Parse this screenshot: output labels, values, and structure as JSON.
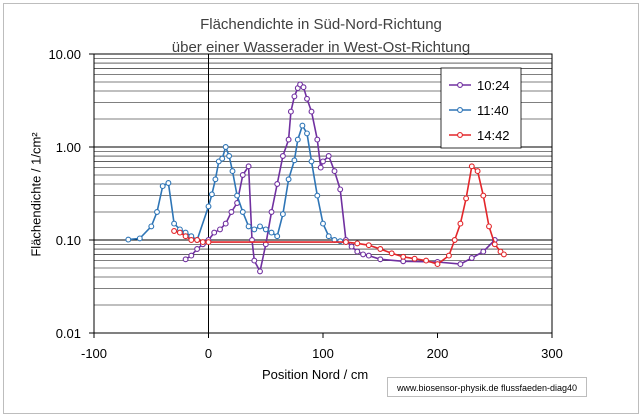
{
  "chart_data": {
    "type": "line",
    "title_line1": "Flächendichte in Süd-Nord-Richtung",
    "title_line2": "über einer Wasserader in West-Ost-Richtung",
    "xlabel": "Position Nord / cm",
    "ylabel": "Flächendichte / 1/cm²",
    "xlim": [
      -100,
      300
    ],
    "ylim": [
      0.01,
      10
    ],
    "yscale": "log",
    "x_ticks": [
      "-100",
      "0",
      "100",
      "200",
      "300"
    ],
    "y_ticks": [
      "0.01",
      "0.10",
      "1.00",
      "10.00"
    ],
    "grid": true,
    "legend_position": "top-right",
    "footer_note": "www.biosensor-physik.de  flussfaeden-diag40",
    "series": [
      {
        "name": "10:24",
        "color": "#7030a0",
        "points": [
          [
            -20,
            0.062
          ],
          [
            -15,
            0.068
          ],
          [
            -10,
            0.08
          ],
          [
            -5,
            0.09
          ],
          [
            0,
            0.1
          ],
          [
            5,
            0.12
          ],
          [
            10,
            0.13
          ],
          [
            15,
            0.15
          ],
          [
            20,
            0.2
          ],
          [
            25,
            0.25
          ],
          [
            30,
            0.5
          ],
          [
            35,
            0.62
          ],
          [
            38,
            0.1
          ],
          [
            40,
            0.06
          ],
          [
            45,
            0.046
          ],
          [
            50,
            0.09
          ],
          [
            55,
            0.2
          ],
          [
            60,
            0.4
          ],
          [
            65,
            0.8
          ],
          [
            70,
            1.2
          ],
          [
            72,
            2.4
          ],
          [
            75,
            3.5
          ],
          [
            78,
            4.3
          ],
          [
            80,
            4.7
          ],
          [
            83,
            4.4
          ],
          [
            86,
            3.3
          ],
          [
            90,
            2.4
          ],
          [
            95,
            1.2
          ],
          [
            98,
            0.6
          ],
          [
            100,
            0.7
          ],
          [
            105,
            0.8
          ],
          [
            110,
            0.55
          ],
          [
            115,
            0.35
          ],
          [
            120,
            0.1
          ],
          [
            125,
            0.085
          ],
          [
            130,
            0.075
          ],
          [
            135,
            0.07
          ],
          [
            140,
            0.068
          ],
          [
            150,
            0.062
          ],
          [
            170,
            0.059
          ],
          [
            200,
            0.058
          ],
          [
            220,
            0.055
          ],
          [
            230,
            0.064
          ],
          [
            240,
            0.075
          ],
          [
            250,
            0.1
          ]
        ]
      },
      {
        "name": "11:40",
        "color": "#2e75b6",
        "points": [
          [
            -70,
            0.101
          ],
          [
            -60,
            0.104
          ],
          [
            -50,
            0.14
          ],
          [
            -45,
            0.2
          ],
          [
            -40,
            0.38
          ],
          [
            -35,
            0.41
          ],
          [
            -30,
            0.15
          ],
          [
            -25,
            0.13
          ],
          [
            -20,
            0.12
          ],
          [
            -15,
            0.11
          ],
          [
            -10,
            0.1
          ],
          [
            0,
            0.23
          ],
          [
            3,
            0.31
          ],
          [
            6,
            0.45
          ],
          [
            9,
            0.7
          ],
          [
            12,
            0.75
          ],
          [
            15,
            1.0
          ],
          [
            18,
            0.8
          ],
          [
            21,
            0.55
          ],
          [
            25,
            0.3
          ],
          [
            30,
            0.2
          ],
          [
            35,
            0.14
          ],
          [
            40,
            0.13
          ],
          [
            45,
            0.14
          ],
          [
            50,
            0.13
          ],
          [
            55,
            0.12
          ],
          [
            60,
            0.11
          ],
          [
            65,
            0.19
          ],
          [
            70,
            0.45
          ],
          [
            75,
            0.72
          ],
          [
            78,
            1.2
          ],
          [
            82,
            1.7
          ],
          [
            86,
            1.4
          ],
          [
            90,
            0.7
          ],
          [
            95,
            0.3
          ],
          [
            100,
            0.15
          ],
          [
            105,
            0.11
          ],
          [
            110,
            0.1
          ],
          [
            115,
            0.097
          ],
          [
            120,
            0.095
          ]
        ]
      },
      {
        "name": "14:42",
        "color": "#e3262a",
        "points": [
          [
            -30,
            0.125
          ],
          [
            -25,
            0.12
          ],
          [
            -20,
            0.11
          ],
          [
            -15,
            0.1
          ],
          [
            -10,
            0.1
          ],
          [
            -5,
            0.095
          ],
          [
            0,
            0.095
          ],
          [
            120,
            0.095
          ],
          [
            130,
            0.092
          ],
          [
            140,
            0.088
          ],
          [
            150,
            0.08
          ],
          [
            160,
            0.072
          ],
          [
            170,
            0.066
          ],
          [
            180,
            0.063
          ],
          [
            190,
            0.06
          ],
          [
            200,
            0.055
          ],
          [
            210,
            0.068
          ],
          [
            215,
            0.1
          ],
          [
            220,
            0.15
          ],
          [
            225,
            0.28
          ],
          [
            230,
            0.62
          ],
          [
            235,
            0.55
          ],
          [
            240,
            0.3
          ],
          [
            245,
            0.14
          ],
          [
            250,
            0.09
          ],
          [
            255,
            0.075
          ],
          [
            258,
            0.07
          ]
        ]
      }
    ]
  }
}
